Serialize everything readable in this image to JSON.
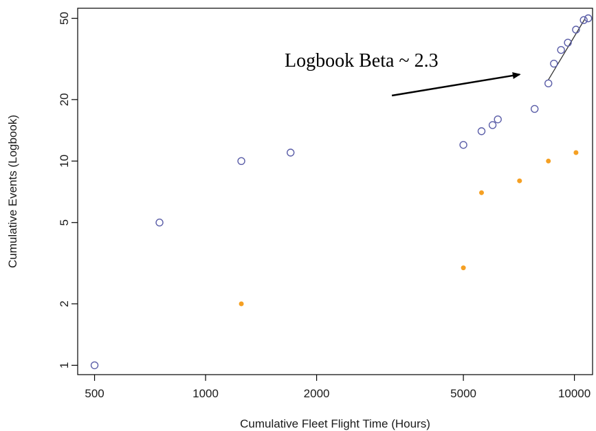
{
  "chart_data": {
    "type": "scatter",
    "title": "",
    "xlabel": "Cumulative Fleet Flight Time (Hours)",
    "ylabel": "Cumulative Events (Logbook)",
    "x_scale": "log",
    "y_scale": "log",
    "xlim": [
      450,
      11200
    ],
    "ylim": [
      0.9,
      56
    ],
    "x_ticks": [
      500,
      1000,
      2000,
      5000,
      10000
    ],
    "x_tick_labels": [
      "500",
      "1000",
      "2000",
      "5000",
      "10000"
    ],
    "y_ticks": [
      1,
      2,
      5,
      10,
      20,
      50
    ],
    "y_tick_labels": [
      "1",
      "2",
      "5",
      "10",
      "20",
      "50"
    ],
    "grid": false,
    "series": [
      {
        "marker": "open-circle",
        "color": "#5b5ea8",
        "points": [
          [
            500,
            1
          ],
          [
            750,
            5
          ],
          [
            1250,
            10
          ],
          [
            1700,
            11
          ],
          [
            5000,
            12
          ],
          [
            5600,
            14
          ],
          [
            6000,
            15
          ],
          [
            6200,
            16
          ],
          [
            7800,
            18
          ],
          [
            8500,
            24
          ],
          [
            8800,
            30
          ],
          [
            9200,
            35
          ],
          [
            9600,
            38
          ],
          [
            10100,
            44
          ],
          [
            10600,
            49
          ],
          [
            10900,
            50
          ]
        ]
      },
      {
        "marker": "filled-dot",
        "color": "#f5a023",
        "points": [
          [
            1250,
            2
          ],
          [
            5000,
            3
          ],
          [
            5600,
            7
          ],
          [
            7100,
            8
          ],
          [
            8500,
            10
          ],
          [
            10100,
            11
          ]
        ]
      }
    ],
    "trend_line": {
      "from": [
        8500,
        25
      ],
      "to": [
        10700,
        50
      ],
      "color": "#333333"
    },
    "annotation": {
      "text": "Logbook Beta ~ 2.3",
      "arrow_from": [
        3200,
        26
      ],
      "arrow_to": [
        7100,
        31
      ]
    }
  }
}
